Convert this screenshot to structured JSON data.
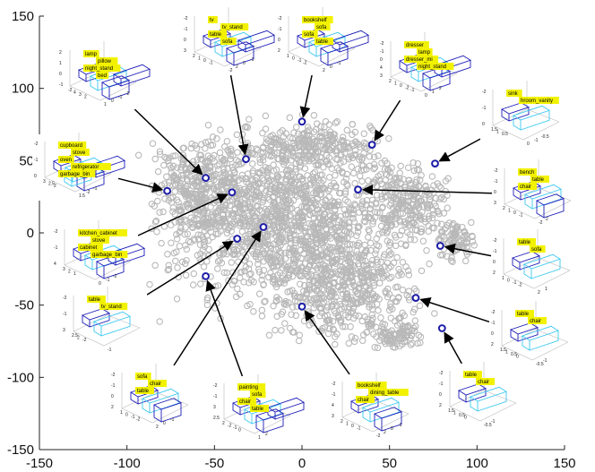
{
  "chart_data": {
    "type": "scatter",
    "title": "",
    "xlabel": "",
    "ylabel": "",
    "xlim": [
      -150,
      150
    ],
    "ylim": [
      -150,
      150
    ],
    "x_ticks": [
      "-150",
      "-100",
      "-50",
      "0",
      "50",
      "100",
      "150"
    ],
    "y_ticks": [
      "150",
      "100",
      "50",
      "0",
      "-50",
      "-100",
      "-150"
    ],
    "colors": {
      "cloud": "#b8b8b8",
      "highlight": "#1c1ca8",
      "arrow": "#000000",
      "label_bg": "#f2f200",
      "box": "#1c1cb8",
      "box_alt": "#3cc8f0"
    },
    "highlighted_points": [
      {
        "x": -55,
        "y": 38,
        "labels": [
          "lamp",
          "pillow",
          "night_stand",
          "bed"
        ]
      },
      {
        "x": -32,
        "y": 51,
        "labels": [
          "tv",
          "tv_stand",
          "table",
          "sofa"
        ]
      },
      {
        "x": 0,
        "y": 77,
        "labels": [
          "bookshelf",
          "sofa",
          "sofa",
          "table"
        ]
      },
      {
        "x": 40,
        "y": 61,
        "labels": [
          "dresser",
          "lamp",
          "dresser_mirror",
          "night_stand"
        ]
      },
      {
        "x": 76,
        "y": 48,
        "labels": [
          "sink",
          "bathroom_vanity"
        ]
      },
      {
        "x": -77,
        "y": 29,
        "labels": [
          "cupboard",
          "stove",
          "oven",
          "refrigerator",
          "garbage_bin"
        ]
      },
      {
        "x": -40,
        "y": 28,
        "labels": [
          "kitchen_cabinet",
          "stove",
          "cabinet",
          "garbage_bin"
        ]
      },
      {
        "x": 32,
        "y": 30,
        "labels": [
          "bench",
          "table",
          "chair"
        ]
      },
      {
        "x": -37,
        "y": -4,
        "labels": [
          "table",
          "tv_stand"
        ]
      },
      {
        "x": -22,
        "y": 4,
        "labels": [
          "sofa",
          "chair",
          "table"
        ]
      },
      {
        "x": 79,
        "y": -9,
        "labels": [
          "table",
          "sofa"
        ]
      },
      {
        "x": -55,
        "y": -30,
        "labels": [
          "painting",
          "chair",
          "table",
          "sofa"
        ]
      },
      {
        "x": 65,
        "y": -45,
        "labels": [
          "table",
          "chair"
        ]
      },
      {
        "x": 80,
        "y": -66,
        "labels": [
          "table",
          "chair"
        ]
      },
      {
        "x": 0,
        "y": -51,
        "labels": [
          "bookshelf",
          "dining_table",
          "chair"
        ]
      }
    ]
  },
  "insets": [
    {
      "labels": [
        "lamp",
        "pillow",
        "night_stand",
        "bed"
      ],
      "axis_ticks": [
        "2",
        "1",
        "0",
        "-1",
        "-2",
        "4",
        "3",
        "2",
        "1",
        "0",
        "-1",
        "-2"
      ]
    },
    {
      "labels": [
        "tv",
        "tv_stand",
        "table",
        "sofa"
      ],
      "axis_ticks": [
        "-2",
        "-1",
        "0",
        "3",
        "2",
        "1",
        "0",
        "-1",
        "-2",
        "2",
        "0",
        "-1"
      ]
    },
    {
      "labels": [
        "bookshelf",
        "sofa",
        "sofa",
        "table"
      ],
      "axis_ticks": [
        "-2",
        "-1",
        "0",
        "2",
        "1",
        "0",
        "-1",
        "-2",
        "2",
        "0",
        "-1"
      ]
    },
    {
      "labels": [
        "dresser",
        "lamp",
        "dresser_mi",
        "night_stand"
      ],
      "axis_ticks": [
        "-2",
        "-1",
        "0",
        "4",
        "3",
        "2",
        "1",
        "0",
        "-2",
        "-1",
        "0",
        "1",
        "2"
      ]
    },
    {
      "labels": [
        "sink",
        "hroom_vanity"
      ],
      "axis_ticks": [
        "-2",
        "-1",
        "0",
        "1.5",
        "1",
        "0.5",
        "0",
        "-1",
        "-0.5"
      ]
    },
    {
      "labels": [
        "cupboard",
        "stove",
        "oven",
        "refrigerator",
        "garbage_bin"
      ],
      "axis_ticks": [
        "-2",
        "-1",
        "0",
        "3",
        "2.5",
        "2",
        "1.5",
        "-2",
        "-1"
      ]
    },
    {
      "labels": [
        "bench",
        "table",
        "chair"
      ],
      "axis_ticks": [
        "-2",
        "-1",
        "0",
        "3",
        "2",
        "1",
        "0",
        "-1",
        "-2",
        "2"
      ]
    },
    {
      "labels": [
        "kitchen_cabinet",
        "stove",
        "cabinet",
        "garbage_bin"
      ],
      "axis_ticks": [
        "-2",
        "-1",
        "4",
        "3",
        "2",
        "1",
        "0",
        "-1",
        "-2"
      ]
    },
    {
      "labels": [
        "table",
        "sofa"
      ],
      "axis_ticks": [
        "-2",
        "-1",
        "0",
        "2",
        "1",
        "0",
        "-1",
        "-2",
        "2",
        "1"
      ]
    },
    {
      "labels": [
        "table",
        "tv_stand"
      ],
      "axis_ticks": [
        "-2",
        "-1",
        "3",
        "2.5",
        "2",
        "-2",
        "-1"
      ]
    },
    {
      "labels": [
        "table",
        "chair"
      ],
      "axis_ticks": [
        "-2",
        "-1",
        "0",
        "2",
        "1.5",
        "1",
        "0.5",
        "0",
        "-0.5",
        "-1"
      ]
    },
    {
      "labels": [
        "sofa",
        "chair",
        "table"
      ],
      "axis_ticks": [
        "-2",
        "-1",
        "0",
        "2",
        "1",
        "0",
        "-1",
        "-2",
        "2",
        "0",
        "-1"
      ]
    },
    {
      "labels": [
        "painting",
        "sofa",
        "chair",
        "table"
      ],
      "axis_ticks": [
        "-2",
        "-1",
        "3",
        "2.5",
        "2",
        "-2",
        "-1",
        "0",
        "1",
        "2"
      ]
    },
    {
      "labels": [
        "bookshelf",
        "dining_table",
        "chair"
      ],
      "axis_ticks": [
        "-2",
        "-1",
        "4",
        "3",
        "2",
        "1",
        "0",
        "-1",
        "-2",
        "2",
        "0",
        "-1"
      ]
    },
    {
      "labels": [
        "table",
        "chair"
      ],
      "axis_ticks": [
        "-2",
        "-1",
        "0",
        "2",
        "1.5",
        "1",
        "0.5",
        "0",
        "-0.5",
        "-1"
      ]
    }
  ]
}
